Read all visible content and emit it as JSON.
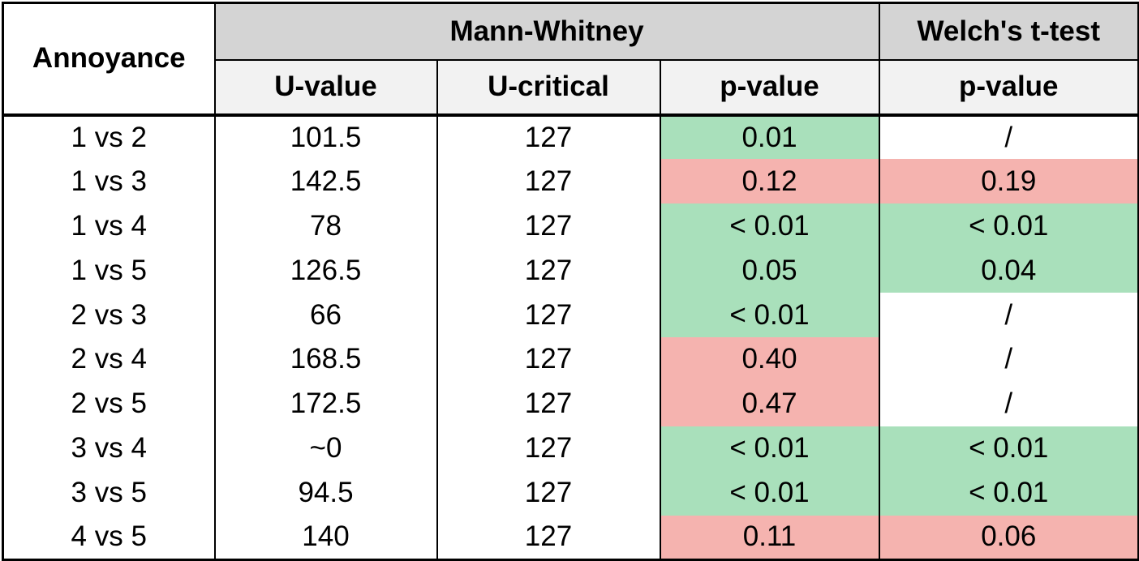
{
  "colors": {
    "group_header_bg": "#d4d4d4",
    "sub_header_bg": "#f2f2f2",
    "significant_bg": "#a9e0bb",
    "not_significant_bg": "#f5b3af",
    "plain_bg": "#ffffff",
    "border": "#000000",
    "text": "#000000"
  },
  "table": {
    "corner_header": "Annoyance",
    "group_headers": [
      {
        "label": "Mann-Whitney",
        "colspan": 3
      },
      {
        "label": "Welch's t-test",
        "colspan": 1
      }
    ],
    "sub_headers": {
      "u_value": "U-value",
      "u_critical": "U-critical",
      "mw_p": "p-value",
      "welch_p": "p-value"
    },
    "rows": [
      {
        "annoyance": "1 vs 2",
        "u_value": "101.5",
        "u_critical": "127",
        "mw_p": "0.01",
        "mw_p_status": "significant",
        "welch_p": "/",
        "welch_p_status": "none"
      },
      {
        "annoyance": "1 vs 3",
        "u_value": "142.5",
        "u_critical": "127",
        "mw_p": "0.12",
        "mw_p_status": "not-significant",
        "welch_p": "0.19",
        "welch_p_status": "not-significant"
      },
      {
        "annoyance": "1 vs 4",
        "u_value": "78",
        "u_critical": "127",
        "mw_p": "< 0.01",
        "mw_p_status": "significant",
        "welch_p": "< 0.01",
        "welch_p_status": "significant"
      },
      {
        "annoyance": "1 vs 5",
        "u_value": "126.5",
        "u_critical": "127",
        "mw_p": "0.05",
        "mw_p_status": "significant",
        "welch_p": "0.04",
        "welch_p_status": "significant"
      },
      {
        "annoyance": "2 vs 3",
        "u_value": "66",
        "u_critical": "127",
        "mw_p": "< 0.01",
        "mw_p_status": "significant",
        "welch_p": "/",
        "welch_p_status": "none"
      },
      {
        "annoyance": "2 vs 4",
        "u_value": "168.5",
        "u_critical": "127",
        "mw_p": "0.40",
        "mw_p_status": "not-significant",
        "welch_p": "/",
        "welch_p_status": "none"
      },
      {
        "annoyance": "2 vs 5",
        "u_value": "172.5",
        "u_critical": "127",
        "mw_p": "0.47",
        "mw_p_status": "not-significant",
        "welch_p": "/",
        "welch_p_status": "none"
      },
      {
        "annoyance": "3 vs 4",
        "u_value": "~0",
        "u_critical": "127",
        "mw_p": "< 0.01",
        "mw_p_status": "significant",
        "welch_p": "< 0.01",
        "welch_p_status": "significant"
      },
      {
        "annoyance": "3 vs 5",
        "u_value": "94.5",
        "u_critical": "127",
        "mw_p": "< 0.01",
        "mw_p_status": "significant",
        "welch_p": "< 0.01",
        "welch_p_status": "significant"
      },
      {
        "annoyance": "4 vs 5",
        "u_value": "140",
        "u_critical": "127",
        "mw_p": "0.11",
        "mw_p_status": "not-significant",
        "welch_p": "0.06",
        "welch_p_status": "not-significant"
      }
    ]
  }
}
